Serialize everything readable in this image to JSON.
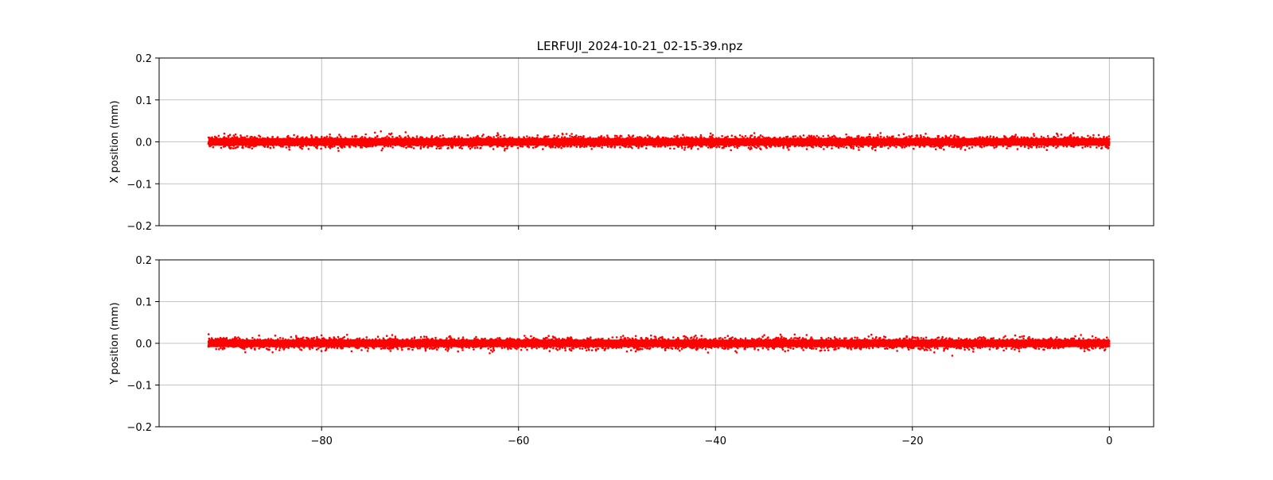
{
  "title": "LERFUJI_2024-10-21_02-15-39.npz",
  "colors": {
    "marker": "#ff0000",
    "grid": "#b0b0b0",
    "axis": "#000000",
    "background": "#ffffff"
  },
  "chart_data": [
    {
      "type": "scatter",
      "title": "LERFUJI_2024-10-21_02-15-39.npz",
      "xlabel": "",
      "ylabel": "X position (mm)",
      "xlim": [
        -96.5,
        4.5
      ],
      "ylim": [
        -0.2,
        0.2
      ],
      "x_range": [
        -91.5,
        0
      ],
      "y_spread": {
        "core": 0.012,
        "max": 0.025
      },
      "xticks": [
        -80,
        -60,
        -40,
        -20,
        0
      ],
      "xtick_labels_shown": false,
      "yticks": [
        -0.2,
        -0.1,
        0.0,
        0.1,
        0.2
      ],
      "ytick_labels": [
        "−0.2",
        "−0.1",
        "0.0",
        "0.1",
        "0.2"
      ],
      "grid": true,
      "marker_color": "#ff0000"
    },
    {
      "type": "scatter",
      "title": "",
      "xlabel": "",
      "ylabel": "Y position (mm)",
      "xlim": [
        -96.5,
        4.5
      ],
      "ylim": [
        -0.2,
        0.2
      ],
      "x_range": [
        -91.5,
        0
      ],
      "y_spread": {
        "core": 0.012,
        "max": 0.03
      },
      "xticks": [
        -80,
        -60,
        -40,
        -20,
        0
      ],
      "xtick_labels": [
        "−80",
        "−60",
        "−40",
        "−20",
        "0"
      ],
      "xtick_labels_shown": true,
      "yticks": [
        -0.2,
        -0.1,
        0.0,
        0.1,
        0.2
      ],
      "ytick_labels": [
        "−0.2",
        "−0.1",
        "0.0",
        "0.1",
        "0.2"
      ],
      "grid": true,
      "marker_color": "#ff0000"
    }
  ]
}
